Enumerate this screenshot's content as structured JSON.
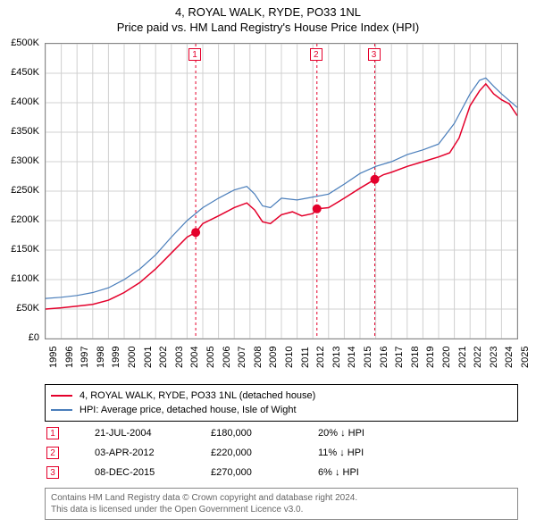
{
  "title_line1": "4, ROYAL WALK, RYDE, PO33 1NL",
  "title_line2": "Price paid vs. HM Land Registry's House Price Index (HPI)",
  "chart": {
    "type": "line",
    "x_start_year": 1995,
    "x_end_year": 2025,
    "x_ticks": [
      1995,
      1996,
      1997,
      1998,
      1999,
      2000,
      2001,
      2002,
      2003,
      2004,
      2005,
      2006,
      2007,
      2008,
      2009,
      2010,
      2011,
      2012,
      2013,
      2014,
      2015,
      2016,
      2017,
      2018,
      2019,
      2020,
      2021,
      2022,
      2023,
      2024,
      2025
    ],
    "y_min": 0,
    "y_max": 500000,
    "y_tick_step": 50000,
    "y_tick_labels": [
      "£0",
      "£50K",
      "£100K",
      "£150K",
      "£200K",
      "£250K",
      "£300K",
      "£350K",
      "£400K",
      "£450K",
      "£500K"
    ],
    "grid_color": "#d0d0d0",
    "background_color": "#ffffff",
    "axis_color": "#888888",
    "series": [
      {
        "name": "price_paid",
        "label": "4, ROYAL WALK, RYDE, PO33 1NL (detached house)",
        "color": "#e4002b",
        "line_width": 1.5,
        "points": [
          [
            1995.0,
            50000
          ],
          [
            1996.0,
            52000
          ],
          [
            1997.0,
            55000
          ],
          [
            1998.0,
            58000
          ],
          [
            1999.0,
            65000
          ],
          [
            2000.0,
            78000
          ],
          [
            2001.0,
            95000
          ],
          [
            2002.0,
            118000
          ],
          [
            2003.0,
            145000
          ],
          [
            2004.0,
            172000
          ],
          [
            2004.55,
            180000
          ],
          [
            2005.0,
            195000
          ],
          [
            2006.0,
            208000
          ],
          [
            2007.0,
            222000
          ],
          [
            2007.8,
            230000
          ],
          [
            2008.3,
            218000
          ],
          [
            2008.8,
            198000
          ],
          [
            2009.3,
            195000
          ],
          [
            2010.0,
            210000
          ],
          [
            2010.7,
            215000
          ],
          [
            2011.3,
            208000
          ],
          [
            2012.0,
            212000
          ],
          [
            2012.26,
            220000
          ],
          [
            2013.0,
            222000
          ],
          [
            2014.0,
            238000
          ],
          [
            2015.0,
            255000
          ],
          [
            2015.94,
            270000
          ],
          [
            2016.5,
            278000
          ],
          [
            2017.0,
            282000
          ],
          [
            2018.0,
            292000
          ],
          [
            2019.0,
            300000
          ],
          [
            2020.0,
            308000
          ],
          [
            2020.7,
            315000
          ],
          [
            2021.3,
            340000
          ],
          [
            2022.0,
            395000
          ],
          [
            2022.6,
            420000
          ],
          [
            2023.0,
            432000
          ],
          [
            2023.5,
            415000
          ],
          [
            2024.0,
            405000
          ],
          [
            2024.5,
            398000
          ],
          [
            2025.0,
            378000
          ]
        ]
      },
      {
        "name": "hpi",
        "label": "HPI: Average price, detached house, Isle of Wight",
        "color": "#4a7ebb",
        "line_width": 1.2,
        "points": [
          [
            1995.0,
            68000
          ],
          [
            1996.0,
            70000
          ],
          [
            1997.0,
            73000
          ],
          [
            1998.0,
            78000
          ],
          [
            1999.0,
            86000
          ],
          [
            2000.0,
            100000
          ],
          [
            2001.0,
            118000
          ],
          [
            2002.0,
            142000
          ],
          [
            2003.0,
            172000
          ],
          [
            2004.0,
            200000
          ],
          [
            2005.0,
            222000
          ],
          [
            2006.0,
            238000
          ],
          [
            2007.0,
            252000
          ],
          [
            2007.8,
            258000
          ],
          [
            2008.3,
            245000
          ],
          [
            2008.8,
            225000
          ],
          [
            2009.3,
            222000
          ],
          [
            2010.0,
            238000
          ],
          [
            2011.0,
            235000
          ],
          [
            2012.0,
            240000
          ],
          [
            2013.0,
            245000
          ],
          [
            2014.0,
            262000
          ],
          [
            2015.0,
            280000
          ],
          [
            2016.0,
            292000
          ],
          [
            2017.0,
            300000
          ],
          [
            2018.0,
            312000
          ],
          [
            2019.0,
            320000
          ],
          [
            2020.0,
            330000
          ],
          [
            2021.0,
            365000
          ],
          [
            2022.0,
            415000
          ],
          [
            2022.6,
            438000
          ],
          [
            2023.0,
            442000
          ],
          [
            2023.5,
            428000
          ],
          [
            2024.0,
            415000
          ],
          [
            2025.0,
            392000
          ]
        ]
      }
    ],
    "markers": [
      {
        "n": "1",
        "x": 2004.55,
        "y": 180000
      },
      {
        "n": "2",
        "x": 2012.26,
        "y": 220000
      },
      {
        "n": "3",
        "x": 2015.94,
        "y": 270000
      }
    ],
    "marker_dot_color": "#e4002b",
    "marker_line_color": "#e4002b",
    "marker_line_dash": "3,3"
  },
  "legend": {
    "items": [
      {
        "color": "#e4002b",
        "label": "4, ROYAL WALK, RYDE, PO33 1NL (detached house)"
      },
      {
        "color": "#4a7ebb",
        "label": "HPI: Average price, detached house, Isle of Wight"
      }
    ]
  },
  "events": [
    {
      "n": "1",
      "date": "21-JUL-2004",
      "price": "£180,000",
      "diff": "20% ↓ HPI"
    },
    {
      "n": "2",
      "date": "03-APR-2012",
      "price": "£220,000",
      "diff": "11% ↓ HPI"
    },
    {
      "n": "3",
      "date": "08-DEC-2015",
      "price": "£270,000",
      "diff": "6% ↓ HPI"
    }
  ],
  "footer_line1": "Contains HM Land Registry data © Crown copyright and database right 2024.",
  "footer_line2": "This data is licensed under the Open Government Licence v3.0."
}
